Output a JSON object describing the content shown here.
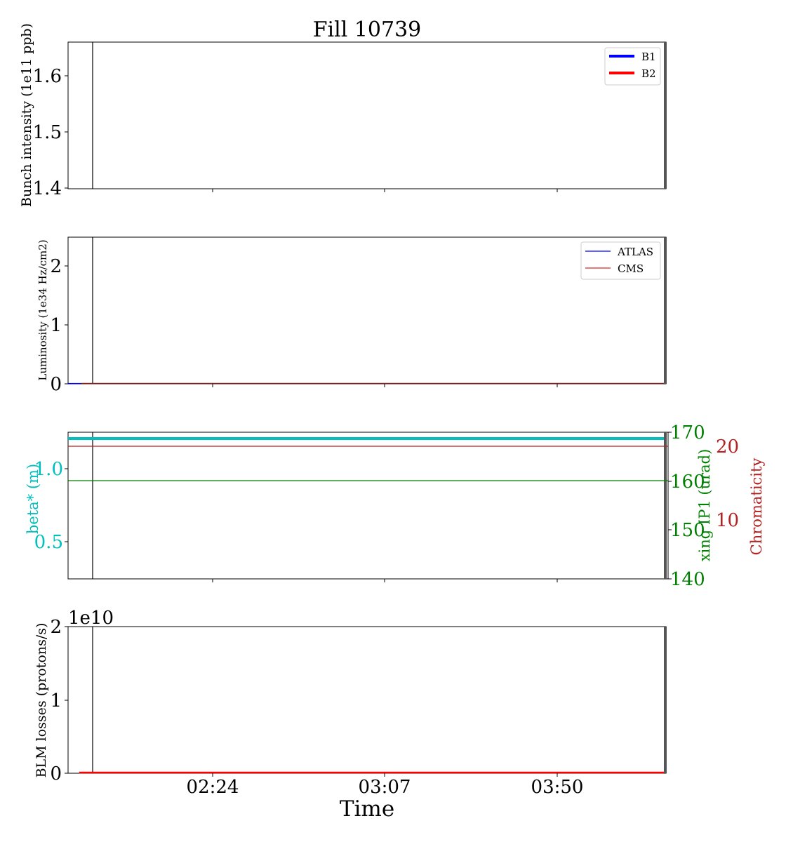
{
  "figure_title": "Fill 10739",
  "x_axis_label": "Time",
  "x_tick_labels": [
    "02:24",
    "03:07",
    "03:50"
  ],
  "chart_data": [
    {
      "type": "line",
      "panel": "bunch-intensity",
      "ylabel": "Bunch intensity (1e11 ppb)",
      "ylim": [
        1.4,
        1.66
      ],
      "yticks": [
        1.4,
        1.5,
        1.6
      ],
      "ytick_labels": [
        "1.4",
        "1.5",
        "1.6"
      ],
      "legend": "top-right",
      "series": [
        {
          "name": "B1",
          "color": "#0000ff",
          "values": []
        },
        {
          "name": "B2",
          "color": "#ff0000",
          "values": []
        }
      ]
    },
    {
      "type": "line",
      "panel": "luminosity",
      "ylabel": "Luminosity (1e34 Hz/cm2)",
      "ylim": [
        0,
        2.5
      ],
      "yticks": [
        0,
        1,
        2
      ],
      "ytick_labels": [
        "0",
        "1",
        "2"
      ],
      "legend": "top-right",
      "series": [
        {
          "name": "ATLAS",
          "color": "#0000ff",
          "values": [
            0,
            0
          ]
        },
        {
          "name": "CMS",
          "color": "#d62728",
          "values": [
            0,
            0
          ]
        }
      ]
    },
    {
      "type": "line",
      "panel": "optics",
      "ylabel": "beta* (m)",
      "ylim": [
        0.25,
        1.25
      ],
      "yticks": [
        0.5,
        1.0
      ],
      "ytick_labels": [
        "0.5",
        "1.0"
      ],
      "ylabel_right": "xing IP1 (urad)",
      "ylim_right": [
        140,
        170
      ],
      "yticks_right": [
        140,
        150,
        160,
        170
      ],
      "ytick_labels_right": [
        "140",
        "150",
        "160",
        "170"
      ],
      "ylabel_right2": "Chromaticity",
      "yticks_right2_labels": [
        "10",
        "20"
      ],
      "series": [
        {
          "axis": "left",
          "color": "#00bfbf",
          "values": [
            1.2,
            1.2
          ]
        },
        {
          "axis": "right",
          "color": "#008000",
          "values": [
            160,
            160
          ]
        },
        {
          "axis": "right2",
          "color": "#b22222",
          "values": [
            20,
            20
          ]
        }
      ]
    },
    {
      "type": "line",
      "panel": "blm-losses",
      "ylabel": "BLM losses (protons/s)",
      "ylim": [
        0,
        2
      ],
      "yticks": [
        0,
        1,
        2
      ],
      "ytick_labels": [
        "0",
        "1",
        "2"
      ],
      "offset_label": "1e10",
      "series": [
        {
          "color": "#ff0000",
          "values": [
            0,
            0
          ]
        }
      ]
    }
  ]
}
